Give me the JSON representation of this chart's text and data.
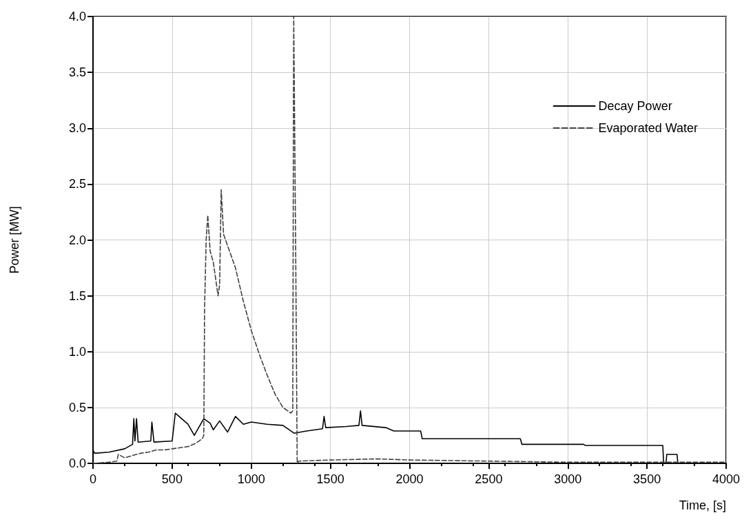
{
  "chart_data": {
    "type": "line",
    "xlabel": "Time, [s]",
    "ylabel": "Power [MW]",
    "xlim": [
      0,
      4000
    ],
    "xticks": [
      0,
      500,
      1000,
      1500,
      2000,
      2500,
      3000,
      3500,
      4000
    ],
    "ylim": [
      0,
      4
    ],
    "yticks": [
      {
        "value": 0,
        "label": "0.0"
      },
      {
        "value": 0.5,
        "label": "0.5"
      },
      {
        "value": 1,
        "label": "1.0"
      },
      {
        "value": 1.5,
        "label": "1.5"
      },
      {
        "value": 2,
        "label": "2.0"
      },
      {
        "value": 2.5,
        "label": "2.5"
      },
      {
        "value": 3,
        "label": "3.0"
      },
      {
        "value": 3.5,
        "label": "3.5"
      },
      {
        "value": 4,
        "label": "4.0"
      }
    ],
    "grid": true,
    "legend": "top right",
    "marker": "none",
    "series": [
      {
        "name": "Decay Power",
        "color": "#000000",
        "line_style": "solid",
        "x": [
          0,
          10,
          100,
          200,
          250,
          258,
          265,
          275,
          285,
          365,
          372,
          385,
          500,
          520,
          560,
          600,
          640,
          680,
          700,
          740,
          760,
          800,
          850,
          900,
          950,
          1000,
          1100,
          1200,
          1270,
          1350,
          1450,
          1460,
          1470,
          1600,
          1680,
          1690,
          1700,
          1850,
          1900,
          2070,
          2080,
          2700,
          2710,
          3100,
          3110,
          3600,
          3605,
          3620,
          3625,
          3690,
          3695,
          4000
        ],
        "values": [
          0.12,
          0.09,
          0.1,
          0.13,
          0.17,
          0.4,
          0.2,
          0.4,
          0.19,
          0.2,
          0.37,
          0.19,
          0.2,
          0.45,
          0.4,
          0.35,
          0.25,
          0.35,
          0.4,
          0.36,
          0.3,
          0.38,
          0.28,
          0.42,
          0.35,
          0.37,
          0.35,
          0.34,
          0.27,
          0.29,
          0.31,
          0.42,
          0.32,
          0.33,
          0.34,
          0.47,
          0.34,
          0.32,
          0.29,
          0.29,
          0.22,
          0.22,
          0.17,
          0.17,
          0.16,
          0.16,
          0,
          0,
          0.08,
          0.08,
          0,
          0
        ]
      },
      {
        "name": "Evaporated Water",
        "color": "#404040",
        "line_style": "dashed",
        "x": [
          0,
          100,
          150,
          160,
          200,
          250,
          300,
          350,
          400,
          450,
          500,
          550,
          600,
          650,
          690,
          700,
          705,
          715,
          725,
          740,
          760,
          790,
          800,
          810,
          825,
          850,
          900,
          950,
          1000,
          1050,
          1100,
          1150,
          1200,
          1250,
          1262,
          1268,
          1280,
          1290,
          1300,
          1500,
          1800,
          2000,
          2500,
          3000,
          3500,
          4000
        ],
        "values": [
          0,
          0.01,
          0.02,
          0.08,
          0.05,
          0.07,
          0.09,
          0.1,
          0.12,
          0.12,
          0.13,
          0.14,
          0.15,
          0.18,
          0.22,
          0.25,
          1.4,
          2.0,
          2.22,
          1.9,
          1.8,
          1.5,
          1.6,
          2.45,
          2.05,
          1.95,
          1.75,
          1.45,
          1.19,
          0.98,
          0.79,
          0.62,
          0.5,
          0.45,
          0.47,
          4.0,
          2.0,
          0,
          0.02,
          0.03,
          0.04,
          0.03,
          0.02,
          0.01,
          0.01,
          0.01
        ]
      }
    ]
  }
}
